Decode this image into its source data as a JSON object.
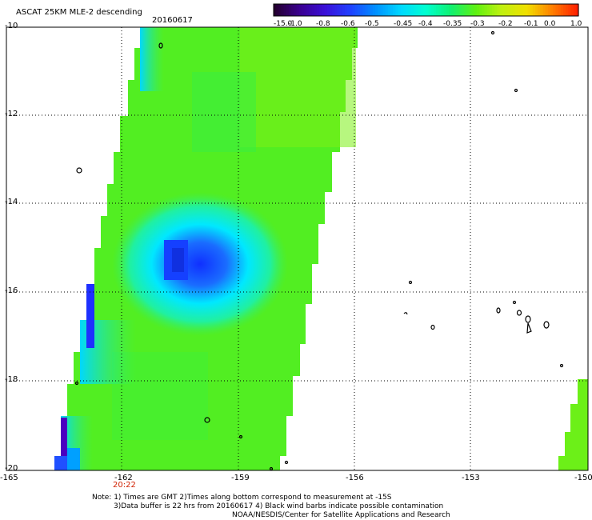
{
  "header": {
    "title": "ASCAT 25KM MLE-2 descending",
    "date": "20160617"
  },
  "colorbar": {
    "labels": [
      "-15.0",
      "-1.0",
      "-0.8",
      "-0.6",
      "-0.5",
      "-0.45",
      "-0.4",
      "-0.35",
      "-0.3",
      "-0.2",
      "-0.1",
      "0.0",
      "1.0"
    ],
    "colors": [
      "#250030",
      "#3a0090",
      "#3a10d8",
      "#2040ff",
      "#0090ff",
      "#00d8ff",
      "#00ffd0",
      "#10f070",
      "#60f010",
      "#c0f010",
      "#f0e000",
      "#ff8000",
      "#ff2000"
    ]
  },
  "axes": {
    "lat_labels": [
      "-10",
      "-12",
      "-14",
      "-16",
      "-18",
      "-20"
    ],
    "lon_labels": [
      "-165",
      "-162",
      "-159",
      "-156",
      "-153",
      "-150"
    ],
    "time_label": "20:22",
    "time_color": "#d02000"
  },
  "swaths": {
    "main": {
      "hex": "#62ef18",
      "left_cols": [
        [
          -20,
          -19.8,
          "#1f3cff"
        ],
        [
          -19.8,
          -19.5,
          "#4a00c8"
        ],
        [
          -19.5,
          -18.8,
          "#00c8ff"
        ],
        [
          -18.8,
          -17.4,
          "#2e8fff"
        ]
      ]
    }
  },
  "notes": {
    "line1": "Note: 1) Times are GMT 2)Times along bottom correspond to measurement at -15S",
    "line2": "3)Data buffer is 22 hrs from 20160617 4) Black wind barbs indicate possible contamination",
    "line3": "NOAA/NESDIS/Center for Satellite Applications and Research"
  }
}
